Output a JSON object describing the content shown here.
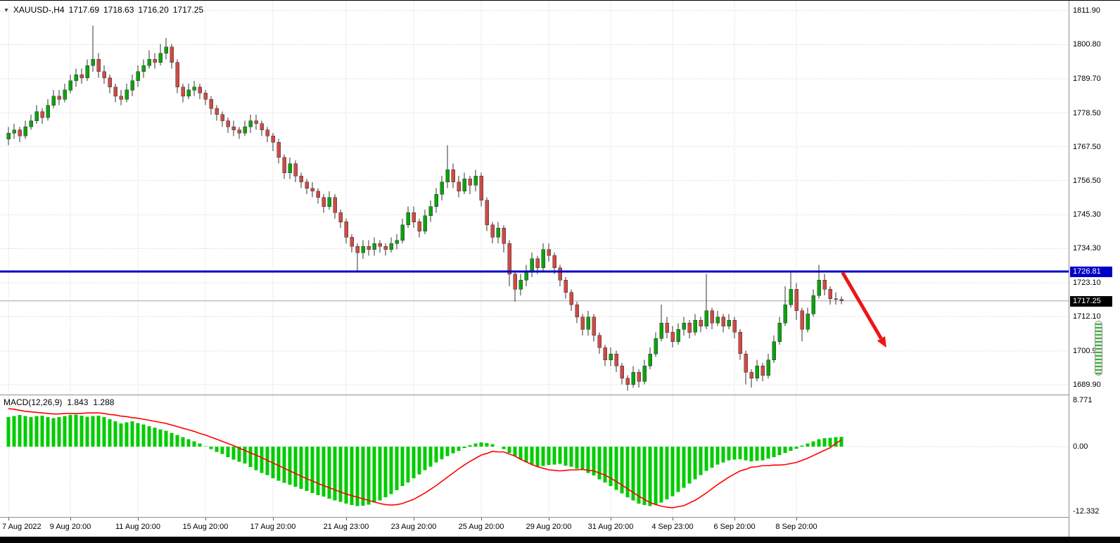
{
  "window": {
    "header": {
      "dropdown_icon": "▼",
      "symbol_period": "XAUUSD-,H4",
      "open": "1717.69",
      "high": "1718.63",
      "low": "1716.20",
      "close": "1717.25"
    }
  },
  "chart_data": {
    "type": "candlestick",
    "symbol": "XAUUSD",
    "timeframe": "H4",
    "colors": {
      "bull": "#0ca30c",
      "bear": "#cf4a45",
      "wick": "#333333",
      "grid": "#cdcdcd",
      "macd_hist": "#00cc00",
      "macd_signal": "#ff0000"
    },
    "price_axis": {
      "ticks": [
        1811.9,
        1800.8,
        1789.7,
        1778.5,
        1767.5,
        1756.5,
        1745.3,
        1734.3,
        1723.1,
        1712.1,
        1700.9,
        1689.9
      ]
    },
    "time_axis": {
      "labels": [
        {
          "text": "7 Aug 2022",
          "index": 0
        },
        {
          "text": "9 Aug 20:00",
          "index": 11
        },
        {
          "text": "11 Aug 20:00",
          "index": 23
        },
        {
          "text": "15 Aug 20:00",
          "index": 35
        },
        {
          "text": "17 Aug 20:00",
          "index": 47
        },
        {
          "text": "21 Aug 23:00",
          "index": 60
        },
        {
          "text": "23 Aug 20:00",
          "index": 72
        },
        {
          "text": "25 Aug 20:00",
          "index": 84
        },
        {
          "text": "29 Aug 20:00",
          "index": 96
        },
        {
          "text": "31 Aug 20:00",
          "index": 107
        },
        {
          "text": "4 Sep 23:00",
          "index": 118
        },
        {
          "text": "6 Sep 20:00",
          "index": 129
        },
        {
          "text": "8 Sep 20:00",
          "index": 140
        }
      ]
    },
    "current_price": {
      "value": 1717.25,
      "label": "1717.25"
    },
    "horizontal_line": {
      "price": 1726.81,
      "label": "1726.81",
      "color": "#0000c8"
    },
    "arrow": {
      "from_index": 148.2,
      "from_price": 1726.5,
      "to_index": 156,
      "to_price": 1702,
      "color": "#ed1515"
    },
    "candles": [
      [
        1770,
        1774,
        1768,
        1772
      ],
      [
        1772,
        1775,
        1770,
        1773
      ],
      [
        1773,
        1774,
        1769,
        1771
      ],
      [
        1771,
        1776,
        1770,
        1774
      ],
      [
        1774,
        1778,
        1773,
        1776
      ],
      [
        1776,
        1781,
        1775,
        1779
      ],
      [
        1779,
        1780,
        1775,
        1777
      ],
      [
        1777,
        1783,
        1776,
        1781
      ],
      [
        1781,
        1786,
        1780,
        1784
      ],
      [
        1784,
        1786,
        1781,
        1783
      ],
      [
        1783,
        1788,
        1782,
        1786
      ],
      [
        1786,
        1791,
        1785,
        1789
      ],
      [
        1789,
        1793,
        1787,
        1791
      ],
      [
        1791,
        1793,
        1788,
        1790
      ],
      [
        1790,
        1796,
        1789,
        1794
      ],
      [
        1794,
        1807,
        1792,
        1796
      ],
      [
        1796,
        1798,
        1790,
        1792
      ],
      [
        1792,
        1794,
        1788,
        1790
      ],
      [
        1790,
        1791,
        1785,
        1787
      ],
      [
        1787,
        1788,
        1782,
        1784
      ],
      [
        1784,
        1786,
        1781,
        1783
      ],
      [
        1783,
        1788,
        1782,
        1786
      ],
      [
        1786,
        1791,
        1784,
        1789
      ],
      [
        1789,
        1794,
        1787,
        1792
      ],
      [
        1792,
        1796,
        1790,
        1794
      ],
      [
        1794,
        1799,
        1793,
        1796
      ],
      [
        1796,
        1798,
        1793,
        1795
      ],
      [
        1795,
        1801,
        1794,
        1798
      ],
      [
        1798,
        1803,
        1796,
        1800
      ],
      [
        1800,
        1801,
        1793,
        1795
      ],
      [
        1795,
        1796,
        1785,
        1787
      ],
      [
        1787,
        1788,
        1782,
        1784
      ],
      [
        1784,
        1788,
        1783,
        1786
      ],
      [
        1786,
        1789,
        1784,
        1787
      ],
      [
        1787,
        1788,
        1783,
        1785
      ],
      [
        1785,
        1786,
        1781,
        1783
      ],
      [
        1783,
        1784,
        1778,
        1780
      ],
      [
        1780,
        1781,
        1776,
        1778
      ],
      [
        1778,
        1779,
        1774,
        1776
      ],
      [
        1776,
        1777,
        1772,
        1774
      ],
      [
        1774,
        1776,
        1771,
        1773
      ],
      [
        1773,
        1774,
        1770,
        1772
      ],
      [
        1772,
        1776,
        1771,
        1774
      ],
      [
        1774,
        1778,
        1772,
        1776
      ],
      [
        1776,
        1778,
        1773,
        1775
      ],
      [
        1775,
        1776,
        1771,
        1773
      ],
      [
        1773,
        1774,
        1769,
        1771
      ],
      [
        1771,
        1772,
        1766,
        1769
      ],
      [
        1769,
        1770,
        1762,
        1764
      ],
      [
        1764,
        1765,
        1757,
        1759
      ],
      [
        1759,
        1764,
        1757,
        1762
      ],
      [
        1762,
        1763,
        1756,
        1758
      ],
      [
        1758,
        1759,
        1754,
        1756
      ],
      [
        1756,
        1757,
        1752,
        1754
      ],
      [
        1754,
        1756,
        1751,
        1753
      ],
      [
        1753,
        1754,
        1749,
        1751
      ],
      [
        1751,
        1752,
        1746,
        1748
      ],
      [
        1748,
        1753,
        1747,
        1751
      ],
      [
        1751,
        1752,
        1744,
        1746
      ],
      [
        1746,
        1747,
        1741,
        1743
      ],
      [
        1743,
        1744,
        1736,
        1738
      ],
      [
        1738,
        1739,
        1733,
        1735
      ],
      [
        1735,
        1736,
        1727,
        1733
      ],
      [
        1733,
        1737,
        1731,
        1735
      ],
      [
        1735,
        1737,
        1732,
        1734
      ],
      [
        1734,
        1738,
        1732,
        1736
      ],
      [
        1736,
        1737,
        1733,
        1735
      ],
      [
        1735,
        1736,
        1732,
        1734
      ],
      [
        1734,
        1738,
        1733,
        1736
      ],
      [
        1736,
        1739,
        1734,
        1737
      ],
      [
        1737,
        1744,
        1736,
        1742
      ],
      [
        1742,
        1748,
        1741,
        1746
      ],
      [
        1746,
        1748,
        1741,
        1743
      ],
      [
        1743,
        1744,
        1738,
        1740
      ],
      [
        1740,
        1747,
        1739,
        1745
      ],
      [
        1745,
        1750,
        1743,
        1748
      ],
      [
        1748,
        1754,
        1746,
        1752
      ],
      [
        1752,
        1758,
        1750,
        1756
      ],
      [
        1756,
        1768,
        1754,
        1760
      ],
      [
        1760,
        1762,
        1754,
        1756
      ],
      [
        1756,
        1758,
        1751,
        1753
      ],
      [
        1753,
        1759,
        1752,
        1757
      ],
      [
        1757,
        1758,
        1752,
        1755
      ],
      [
        1755,
        1760,
        1753,
        1758
      ],
      [
        1758,
        1759,
        1748,
        1750
      ],
      [
        1750,
        1751,
        1740,
        1742
      ],
      [
        1742,
        1743,
        1736,
        1738
      ],
      [
        1738,
        1743,
        1736,
        1741
      ],
      [
        1741,
        1742,
        1733,
        1736
      ],
      [
        1736,
        1737,
        1722,
        1726
      ],
      [
        1726,
        1727,
        1717,
        1721
      ],
      [
        1721,
        1726,
        1719,
        1724
      ],
      [
        1724,
        1729,
        1722,
        1727
      ],
      [
        1727,
        1733,
        1725,
        1731
      ],
      [
        1731,
        1732,
        1726,
        1728
      ],
      [
        1728,
        1736,
        1727,
        1734
      ],
      [
        1734,
        1736,
        1730,
        1732
      ],
      [
        1732,
        1733,
        1726,
        1728
      ],
      [
        1728,
        1729,
        1722,
        1724
      ],
      [
        1724,
        1725,
        1718,
        1720
      ],
      [
        1720,
        1721,
        1714,
        1716
      ],
      [
        1716,
        1717,
        1710,
        1712
      ],
      [
        1712,
        1713,
        1706,
        1708
      ],
      [
        1708,
        1714,
        1706,
        1712
      ],
      [
        1712,
        1713,
        1704,
        1706
      ],
      [
        1706,
        1707,
        1700,
        1702
      ],
      [
        1702,
        1703,
        1696,
        1698
      ],
      [
        1698,
        1702,
        1696,
        1700
      ],
      [
        1700,
        1701,
        1694,
        1696
      ],
      [
        1696,
        1697,
        1690,
        1692
      ],
      [
        1692,
        1693,
        1688,
        1690
      ],
      [
        1690,
        1696,
        1689,
        1694
      ],
      [
        1694,
        1695,
        1689,
        1691
      ],
      [
        1691,
        1698,
        1690,
        1696
      ],
      [
        1696,
        1702,
        1695,
        1700
      ],
      [
        1700,
        1707,
        1699,
        1705
      ],
      [
        1705,
        1716,
        1704,
        1710
      ],
      [
        1710,
        1712,
        1705,
        1707
      ],
      [
        1707,
        1709,
        1702,
        1704
      ],
      [
        1704,
        1710,
        1703,
        1708
      ],
      [
        1708,
        1712,
        1706,
        1710
      ],
      [
        1710,
        1711,
        1705,
        1707
      ],
      [
        1707,
        1713,
        1706,
        1711
      ],
      [
        1711,
        1712,
        1707,
        1709
      ],
      [
        1709,
        1726,
        1708,
        1714
      ],
      [
        1714,
        1715,
        1708,
        1710
      ],
      [
        1710,
        1714,
        1709,
        1712
      ],
      [
        1712,
        1713,
        1707,
        1709
      ],
      [
        1709,
        1713,
        1708,
        1711
      ],
      [
        1711,
        1712,
        1705,
        1707
      ],
      [
        1707,
        1708,
        1698,
        1700
      ],
      [
        1700,
        1701,
        1690,
        1694
      ],
      [
        1694,
        1695,
        1689,
        1692
      ],
      [
        1692,
        1698,
        1691,
        1696
      ],
      [
        1696,
        1697,
        1691,
        1693
      ],
      [
        1693,
        1700,
        1692,
        1698
      ],
      [
        1698,
        1706,
        1697,
        1704
      ],
      [
        1704,
        1712,
        1703,
        1710
      ],
      [
        1710,
        1722,
        1709,
        1716
      ],
      [
        1716,
        1727,
        1715,
        1721
      ],
      [
        1721,
        1723,
        1711,
        1714
      ],
      [
        1714,
        1715,
        1704,
        1708
      ],
      [
        1708,
        1715,
        1707,
        1713
      ],
      [
        1713,
        1721,
        1712,
        1719
      ],
      [
        1719,
        1729,
        1718,
        1724
      ],
      [
        1724,
        1726,
        1719,
        1721
      ],
      [
        1721,
        1722,
        1716,
        1718
      ],
      [
        1718,
        1720,
        1716,
        1717.7
      ],
      [
        1717.69,
        1718.63,
        1716.2,
        1717.25
      ]
    ],
    "macd": {
      "label": "MACD(12,26,9)",
      "value_main": "1.843",
      "value_signal": "1.288",
      "axis_ticks": [
        {
          "text": "8.771",
          "value": 8.771
        },
        {
          "text": "0.00",
          "value": 0
        },
        {
          "text": "-12.332",
          "value": -12.332
        }
      ],
      "histogram": [
        5.6,
        5.8,
        6.0,
        5.8,
        5.6,
        5.8,
        5.9,
        5.6,
        5.4,
        5.6,
        5.8,
        6.0,
        6.1,
        5.9,
        5.7,
        5.8,
        5.9,
        5.6,
        5.2,
        4.8,
        4.4,
        4.6,
        4.8,
        4.5,
        4.2,
        3.9,
        3.6,
        3.3,
        3.0,
        2.6,
        2.2,
        1.8,
        1.4,
        1.0,
        0.6,
        0.1,
        -0.5,
        -1.0,
        -1.4,
        -2.0,
        -2.5,
        -2.9,
        -3.2,
        -3.9,
        -4.5,
        -5.0,
        -5.4,
        -6.0,
        -6.5,
        -6.9,
        -7.2,
        -7.6,
        -8.0,
        -8.4,
        -8.8,
        -9.2,
        -9.5,
        -9.9,
        -10.2,
        -10.5,
        -10.8,
        -11.1,
        -11.3,
        -11.2,
        -11.0,
        -10.6,
        -10.2,
        -9.6,
        -9.0,
        -8.3,
        -7.5,
        -6.8,
        -6.0,
        -5.3,
        -4.5,
        -3.8,
        -3.0,
        -2.4,
        -1.8,
        -1.3,
        -0.8,
        -0.3,
        0.3,
        0.6,
        0.8,
        0.7,
        0.5,
        0.0,
        -0.5,
        -1.2,
        -1.8,
        -2.4,
        -3.0,
        -3.4,
        -3.8,
        -3.7,
        -3.5,
        -3.4,
        -3.3,
        -3.6,
        -3.8,
        -4.2,
        -4.5,
        -5.0,
        -5.5,
        -6.2,
        -6.8,
        -7.5,
        -8.2,
        -8.9,
        -9.6,
        -10.2,
        -10.8,
        -11.1,
        -11.3,
        -11.0,
        -10.6,
        -10.0,
        -9.4,
        -8.6,
        -7.8,
        -7.0,
        -6.2,
        -5.4,
        -4.6,
        -4.0,
        -3.4,
        -3.0,
        -2.6,
        -2.5,
        -2.4,
        -2.6,
        -2.8,
        -2.7,
        -2.6,
        -2.3,
        -2.0,
        -1.6,
        -1.2,
        -0.8,
        -0.4,
        0.2,
        0.6,
        1.0,
        1.4,
        1.6,
        1.7,
        1.8,
        1.84
      ],
      "signal": [
        7.2,
        7.1,
        6.9,
        6.7,
        6.6,
        6.5,
        6.4,
        6.3,
        6.2,
        6.2,
        6.3,
        6.3,
        6.3,
        6.3,
        6.4,
        6.4,
        6.4,
        6.3,
        6.1,
        6.0,
        5.8,
        5.7,
        5.5,
        5.4,
        5.2,
        5.0,
        4.8,
        4.6,
        4.4,
        4.1,
        3.8,
        3.5,
        3.2,
        2.9,
        2.5,
        2.2,
        1.8,
        1.4,
        1.0,
        0.6,
        0.2,
        -0.3,
        -0.7,
        -1.2,
        -1.6,
        -2.1,
        -2.6,
        -3.1,
        -3.6,
        -4.1,
        -4.6,
        -5.1,
        -5.6,
        -6.1,
        -6.5,
        -7.0,
        -7.4,
        -7.8,
        -8.2,
        -8.6,
        -9.0,
        -9.3,
        -9.6,
        -9.9,
        -10.2,
        -10.5,
        -10.8,
        -11.0,
        -11.1,
        -11.0,
        -10.8,
        -10.4,
        -10.0,
        -9.4,
        -8.8,
        -8.1,
        -7.4,
        -6.6,
        -5.8,
        -5.0,
        -4.2,
        -3.5,
        -2.8,
        -2.2,
        -1.6,
        -1.3,
        -0.9,
        -1.0,
        -1.0,
        -1.4,
        -1.8,
        -2.4,
        -2.9,
        -3.4,
        -3.8,
        -4.1,
        -4.4,
        -4.5,
        -4.6,
        -4.5,
        -4.4,
        -4.4,
        -4.3,
        -4.5,
        -4.6,
        -5.0,
        -5.4,
        -6.0,
        -6.6,
        -7.3,
        -8.0,
        -8.7,
        -9.4,
        -10.0,
        -10.6,
        -11.0,
        -11.3,
        -11.5,
        -11.6,
        -11.4,
        -11.2,
        -10.7,
        -10.2,
        -9.5,
        -8.8,
        -8.0,
        -7.2,
        -6.5,
        -5.8,
        -5.2,
        -4.6,
        -4.3,
        -3.9,
        -3.8,
        -3.6,
        -3.6,
        -3.5,
        -3.5,
        -3.4,
        -3.2,
        -3.0,
        -2.6,
        -2.2,
        -1.7,
        -1.2,
        -0.7,
        -0.2,
        0.6,
        1.29
      ]
    }
  }
}
